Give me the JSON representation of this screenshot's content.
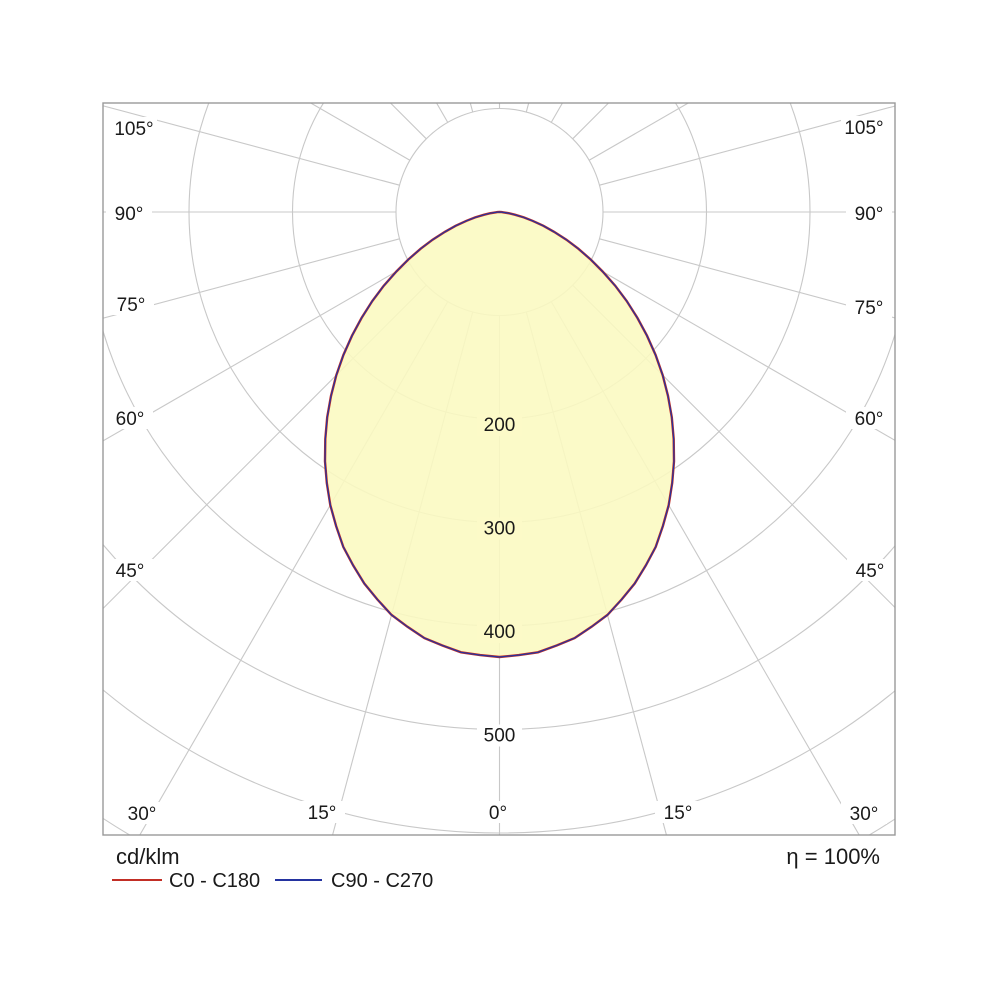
{
  "chart_data": {
    "type": "polar",
    "subtype": "luminous-intensity-distribution",
    "unit_label": "cd/klm",
    "efficiency_text": "η = 100%",
    "ring_step": 100,
    "ring_count": 7,
    "ring_labels": [
      "200",
      "300",
      "400",
      "500"
    ],
    "ring_label_values": [
      200,
      300,
      400,
      500
    ],
    "angle_labels_left": [
      "105°",
      "90°",
      "75°",
      "60°",
      "45°",
      "30°"
    ],
    "angle_labels_bottom": [
      "15°",
      "0°",
      "15°",
      "30°"
    ],
    "angle_labels_right": [
      "45°",
      "60°",
      "75°",
      "90°",
      "105°"
    ],
    "spoke_step_deg": 15,
    "max_intensity_cd_klm": 430,
    "legend": [
      {
        "label": "C0 - C180",
        "color": "#c22e25"
      },
      {
        "label": "C90 - C270",
        "color": "#2433a0"
      }
    ],
    "series": [
      {
        "name": "C0 - C180",
        "color": "#c22e25",
        "angles_deg": [
          0,
          5,
          10,
          15,
          20,
          25,
          30,
          35,
          40,
          45,
          50,
          55,
          60,
          65,
          70,
          75,
          80,
          85,
          90
        ],
        "values_cd_klm": [
          430,
          427,
          418,
          403,
          382,
          357,
          327,
          294,
          259,
          223,
          186,
          150,
          115,
          84,
          56,
          33,
          15,
          4,
          0
        ]
      },
      {
        "name": "C90 - C270",
        "color": "#2433a0",
        "angles_deg": [
          0,
          5,
          10,
          15,
          20,
          25,
          30,
          35,
          40,
          45,
          50,
          55,
          60,
          65,
          70,
          75,
          80,
          85,
          90
        ],
        "values_cd_klm": [
          430,
          427,
          418,
          403,
          382,
          357,
          327,
          294,
          259,
          223,
          186,
          150,
          115,
          84,
          56,
          33,
          15,
          4,
          0
        ]
      }
    ],
    "colors": {
      "fill": "#fbf9c0",
      "grid": "#c8c8c8",
      "border": "#999999",
      "text": "#1a1a1a",
      "label_bg_inside": "#fcfac8",
      "label_bg_outside": "#ffffff"
    }
  }
}
